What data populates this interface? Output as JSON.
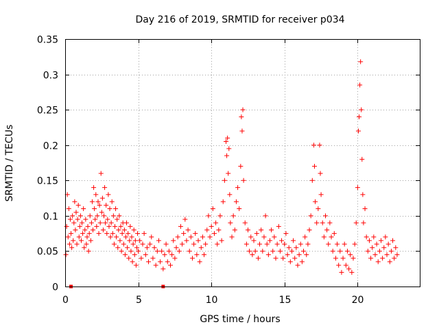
{
  "chart_data": {
    "type": "scatter",
    "title": "Day 216 of 2019, SRMTID for receiver p034",
    "xlabel": "GPS time / hours",
    "ylabel": "SRMTID / TECUs",
    "xlim": [
      0,
      24.25
    ],
    "ylim": [
      0,
      0.35
    ],
    "x_ticks": [
      0,
      5,
      10,
      15,
      20
    ],
    "x_tick_labels": [
      "0",
      "5",
      "10",
      "15",
      "20"
    ],
    "y_ticks": [
      0,
      0.05,
      0.1,
      0.15,
      0.2,
      0.25,
      0.3,
      0.35
    ],
    "y_tick_labels": [
      "0",
      "0.05",
      "0.1",
      "0.15",
      "0.2",
      "0.25",
      "0.3",
      "0.35"
    ],
    "grid": true,
    "marker": "plus",
    "color": "#ff0000",
    "series": [
      {
        "name": "SRMTID",
        "points": [
          [
            0.05,
            0.045
          ],
          [
            0.1,
            0.085
          ],
          [
            0.15,
            0.13
          ],
          [
            0.2,
            0.07
          ],
          [
            0.25,
            0.11
          ],
          [
            0.3,
            0.06
          ],
          [
            0.35,
            0.095
          ],
          [
            0.4,
            0.075
          ],
          [
            0.45,
            0.055
          ],
          [
            0.5,
            0.1
          ],
          [
            0.55,
            0.065
          ],
          [
            0.6,
            0.09
          ],
          [
            0.65,
            0.12
          ],
          [
            0.7,
            0.08
          ],
          [
            0.75,
            0.105
          ],
          [
            0.8,
            0.06
          ],
          [
            0.85,
            0.095
          ],
          [
            0.9,
            0.115
          ],
          [
            0.95,
            0.07
          ],
          [
            1.0,
            0.085
          ],
          [
            1.05,
            0.1
          ],
          [
            1.1,
            0.065
          ],
          [
            1.15,
            0.09
          ],
          [
            1.2,
            0.075
          ],
          [
            1.25,
            0.11
          ],
          [
            1.3,
            0.055
          ],
          [
            1.35,
            0.08
          ],
          [
            1.4,
            0.095
          ],
          [
            1.45,
            0.06
          ],
          [
            1.5,
            0.07
          ],
          [
            1.55,
            0.085
          ],
          [
            1.6,
            0.05
          ],
          [
            1.65,
            0.075
          ],
          [
            1.7,
            0.1
          ],
          [
            1.75,
            0.065
          ],
          [
            1.8,
            0.09
          ],
          [
            1.85,
            0.12
          ],
          [
            1.9,
            0.08
          ],
          [
            1.95,
            0.14
          ],
          [
            2.0,
            0.11
          ],
          [
            2.05,
            0.095
          ],
          [
            2.1,
            0.13
          ],
          [
            2.15,
            0.085
          ],
          [
            2.2,
            0.1
          ],
          [
            2.25,
            0.12
          ],
          [
            2.3,
            0.075
          ],
          [
            2.35,
            0.115
          ],
          [
            2.4,
            0.09
          ],
          [
            2.45,
            0.16
          ],
          [
            2.5,
            0.105
          ],
          [
            2.55,
            0.125
          ],
          [
            2.6,
            0.08
          ],
          [
            2.65,
            0.1
          ],
          [
            2.7,
            0.14
          ],
          [
            2.75,
            0.09
          ],
          [
            2.8,
            0.115
          ],
          [
            2.85,
            0.075
          ],
          [
            2.9,
            0.095
          ],
          [
            2.95,
            0.13
          ],
          [
            3.0,
            0.085
          ],
          [
            3.05,
            0.11
          ],
          [
            3.1,
            0.07
          ],
          [
            3.15,
            0.09
          ],
          [
            3.2,
            0.12
          ],
          [
            3.25,
            0.075
          ],
          [
            3.3,
            0.1
          ],
          [
            3.35,
            0.06
          ],
          [
            3.4,
            0.085
          ],
          [
            3.45,
            0.11
          ],
          [
            3.5,
            0.07
          ],
          [
            3.55,
            0.095
          ],
          [
            3.6,
            0.055
          ],
          [
            3.65,
            0.08
          ],
          [
            3.7,
            0.1
          ],
          [
            3.75,
            0.065
          ],
          [
            3.8,
            0.085
          ],
          [
            3.85,
            0.05
          ],
          [
            3.9,
            0.075
          ],
          [
            3.95,
            0.09
          ],
          [
            4.0,
            0.06
          ],
          [
            4.05,
            0.08
          ],
          [
            4.1,
            0.045
          ],
          [
            4.15,
            0.07
          ],
          [
            4.2,
            0.09
          ],
          [
            4.25,
            0.055
          ],
          [
            4.3,
            0.075
          ],
          [
            4.35,
            0.04
          ],
          [
            4.4,
            0.065
          ],
          [
            4.45,
            0.085
          ],
          [
            4.5,
            0.05
          ],
          [
            4.55,
            0.07
          ],
          [
            4.6,
            0.035
          ],
          [
            4.65,
            0.06
          ],
          [
            4.7,
            0.08
          ],
          [
            4.75,
            0.045
          ],
          [
            4.8,
            0.065
          ],
          [
            4.85,
            0.03
          ],
          [
            4.9,
            0.055
          ],
          [
            4.95,
            0.075
          ],
          [
            5.0,
            0.05
          ],
          [
            5.1,
            0.065
          ],
          [
            5.2,
            0.04
          ],
          [
            5.3,
            0.06
          ],
          [
            5.4,
            0.075
          ],
          [
            5.5,
            0.045
          ],
          [
            5.6,
            0.055
          ],
          [
            5.7,
            0.035
          ],
          [
            5.8,
            0.06
          ],
          [
            5.9,
            0.07
          ],
          [
            6.0,
            0.04
          ],
          [
            6.1,
            0.055
          ],
          [
            6.2,
            0.03
          ],
          [
            6.3,
            0.05
          ],
          [
            6.4,
            0.065
          ],
          [
            6.5,
            0.035
          ],
          [
            6.6,
            0.05
          ],
          [
            6.7,
            0.025
          ],
          [
            6.8,
            0.045
          ],
          [
            6.9,
            0.06
          ],
          [
            7.0,
            0.035
          ],
          [
            7.1,
            0.05
          ],
          [
            7.2,
            0.03
          ],
          [
            7.3,
            0.045
          ],
          [
            7.4,
            0.065
          ],
          [
            7.5,
            0.04
          ],
          [
            7.6,
            0.055
          ],
          [
            7.7,
            0.07
          ],
          [
            7.8,
            0.05
          ],
          [
            7.9,
            0.085
          ],
          [
            8.0,
            0.06
          ],
          [
            8.1,
            0.075
          ],
          [
            8.2,
            0.095
          ],
          [
            8.3,
            0.065
          ],
          [
            8.4,
            0.08
          ],
          [
            8.5,
            0.05
          ],
          [
            8.6,
            0.07
          ],
          [
            8.7,
            0.04
          ],
          [
            8.8,
            0.06
          ],
          [
            8.9,
            0.075
          ],
          [
            9.0,
            0.045
          ],
          [
            9.1,
            0.065
          ],
          [
            9.2,
            0.035
          ],
          [
            9.3,
            0.055
          ],
          [
            9.4,
            0.07
          ],
          [
            9.5,
            0.045
          ],
          [
            9.6,
            0.06
          ],
          [
            9.7,
            0.08
          ],
          [
            9.8,
            0.1
          ],
          [
            9.9,
            0.07
          ],
          [
            10.0,
            0.085
          ],
          [
            10.1,
            0.11
          ],
          [
            10.2,
            0.075
          ],
          [
            10.3,
            0.09
          ],
          [
            10.4,
            0.06
          ],
          [
            10.5,
            0.08
          ],
          [
            10.6,
            0.1
          ],
          [
            10.7,
            0.065
          ],
          [
            10.8,
            0.12
          ],
          [
            10.9,
            0.15
          ],
          [
            11.0,
            0.205
          ],
          [
            11.05,
            0.185
          ],
          [
            11.1,
            0.21
          ],
          [
            11.15,
            0.16
          ],
          [
            11.2,
            0.195
          ],
          [
            11.25,
            0.13
          ],
          [
            11.3,
            0.09
          ],
          [
            11.4,
            0.07
          ],
          [
            11.5,
            0.1
          ],
          [
            11.6,
            0.08
          ],
          [
            11.7,
            0.12
          ],
          [
            11.8,
            0.14
          ],
          [
            11.9,
            0.11
          ],
          [
            12.0,
            0.17
          ],
          [
            12.05,
            0.24
          ],
          [
            12.1,
            0.22
          ],
          [
            12.15,
            0.25
          ],
          [
            12.2,
            0.15
          ],
          [
            12.3,
            0.09
          ],
          [
            12.4,
            0.06
          ],
          [
            12.5,
            0.08
          ],
          [
            12.6,
            0.05
          ],
          [
            12.7,
            0.07
          ],
          [
            12.8,
            0.045
          ],
          [
            12.9,
            0.065
          ],
          [
            13.0,
            0.05
          ],
          [
            13.1,
            0.075
          ],
          [
            13.2,
            0.04
          ],
          [
            13.3,
            0.06
          ],
          [
            13.4,
            0.08
          ],
          [
            13.5,
            0.05
          ],
          [
            13.6,
            0.07
          ],
          [
            13.7,
            0.1
          ],
          [
            13.8,
            0.06
          ],
          [
            13.9,
            0.045
          ],
          [
            14.0,
            0.065
          ],
          [
            14.1,
            0.08
          ],
          [
            14.2,
            0.05
          ],
          [
            14.3,
            0.07
          ],
          [
            14.4,
            0.04
          ],
          [
            14.5,
            0.06
          ],
          [
            14.6,
            0.085
          ],
          [
            14.7,
            0.05
          ],
          [
            14.8,
            0.065
          ],
          [
            14.9,
            0.04
          ],
          [
            15.0,
            0.06
          ],
          [
            15.1,
            0.075
          ],
          [
            15.2,
            0.045
          ],
          [
            15.3,
            0.055
          ],
          [
            15.4,
            0.035
          ],
          [
            15.5,
            0.05
          ],
          [
            15.6,
            0.065
          ],
          [
            15.7,
            0.04
          ],
          [
            15.8,
            0.055
          ],
          [
            15.9,
            0.03
          ],
          [
            16.0,
            0.045
          ],
          [
            16.1,
            0.06
          ],
          [
            16.2,
            0.035
          ],
          [
            16.3,
            0.05
          ],
          [
            16.4,
            0.07
          ],
          [
            16.5,
            0.045
          ],
          [
            16.6,
            0.06
          ],
          [
            16.7,
            0.08
          ],
          [
            16.8,
            0.1
          ],
          [
            16.9,
            0.15
          ],
          [
            17.0,
            0.2
          ],
          [
            17.05,
            0.17
          ],
          [
            17.1,
            0.12
          ],
          [
            17.2,
            0.09
          ],
          [
            17.3,
            0.11
          ],
          [
            17.4,
            0.2
          ],
          [
            17.45,
            0.16
          ],
          [
            17.5,
            0.13
          ],
          [
            17.6,
            0.09
          ],
          [
            17.7,
            0.07
          ],
          [
            17.8,
            0.1
          ],
          [
            17.9,
            0.08
          ],
          [
            18.0,
            0.06
          ],
          [
            18.1,
            0.09
          ],
          [
            18.2,
            0.07
          ],
          [
            18.3,
            0.05
          ],
          [
            18.4,
            0.075
          ],
          [
            18.5,
            0.04
          ],
          [
            18.6,
            0.06
          ],
          [
            18.7,
            0.03
          ],
          [
            18.8,
            0.05
          ],
          [
            18.9,
            0.02
          ],
          [
            19.0,
            0.04
          ],
          [
            19.1,
            0.06
          ],
          [
            19.2,
            0.03
          ],
          [
            19.3,
            0.05
          ],
          [
            19.4,
            0.025
          ],
          [
            19.5,
            0.045
          ],
          [
            19.6,
            0.02
          ],
          [
            19.7,
            0.04
          ],
          [
            19.8,
            0.06
          ],
          [
            19.9,
            0.09
          ],
          [
            20.0,
            0.14
          ],
          [
            20.05,
            0.22
          ],
          [
            20.1,
            0.24
          ],
          [
            20.15,
            0.285
          ],
          [
            20.2,
            0.318
          ],
          [
            20.25,
            0.25
          ],
          [
            20.3,
            0.18
          ],
          [
            20.35,
            0.13
          ],
          [
            20.4,
            0.09
          ],
          [
            20.5,
            0.11
          ],
          [
            20.6,
            0.07
          ],
          [
            20.7,
            0.05
          ],
          [
            20.8,
            0.065
          ],
          [
            20.9,
            0.04
          ],
          [
            21.0,
            0.055
          ],
          [
            21.1,
            0.07
          ],
          [
            21.2,
            0.045
          ],
          [
            21.3,
            0.06
          ],
          [
            21.4,
            0.035
          ],
          [
            21.5,
            0.05
          ],
          [
            21.6,
            0.065
          ],
          [
            21.7,
            0.04
          ],
          [
            21.8,
            0.055
          ],
          [
            21.9,
            0.07
          ],
          [
            22.0,
            0.045
          ],
          [
            22.1,
            0.06
          ],
          [
            22.2,
            0.035
          ],
          [
            22.3,
            0.05
          ],
          [
            22.4,
            0.065
          ],
          [
            22.5,
            0.04
          ],
          [
            22.6,
            0.055
          ],
          [
            22.7,
            0.045
          ]
        ]
      }
    ],
    "markers_on_axis": [
      {
        "x": 0.4,
        "y": 0
      },
      {
        "x": 6.7,
        "y": 0
      }
    ]
  }
}
